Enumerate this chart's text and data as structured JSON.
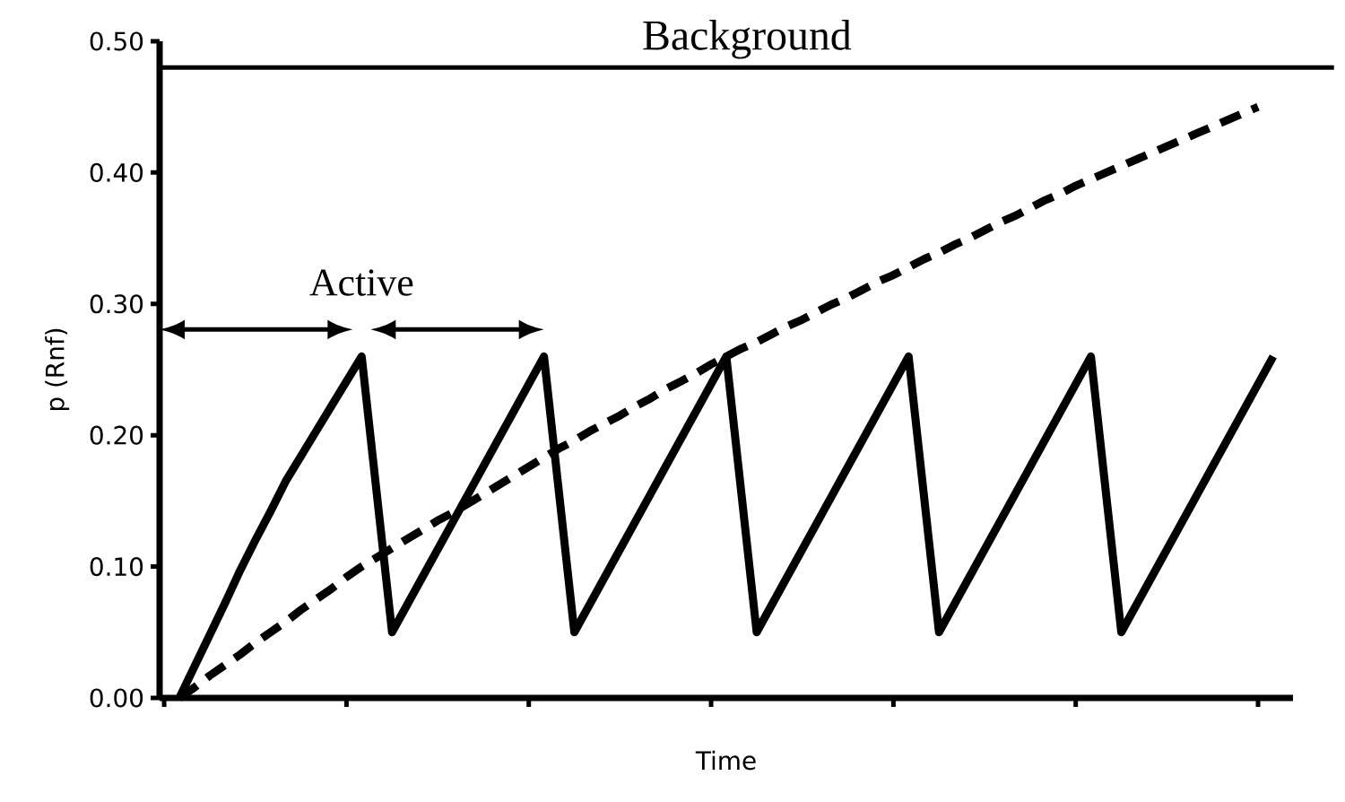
{
  "chart_data": {
    "type": "line",
    "xlabel": "Time",
    "ylabel": "p (Rnf)",
    "categories": [
      null,
      null,
      null,
      null,
      null,
      null,
      null,
      null,
      null,
      null,
      null,
      null,
      null,
      null,
      null,
      null,
      null,
      null,
      null,
      null,
      null,
      null,
      null,
      null,
      null,
      null,
      null,
      null,
      null,
      null,
      null,
      null,
      null,
      null,
      null,
      null,
      null,
      null,
      null,
      null,
      null,
      null,
      null,
      null,
      null,
      null,
      null,
      null,
      null,
      null,
      null,
      null,
      null,
      null,
      null,
      null,
      null,
      null,
      null,
      null,
      null,
      null,
      null,
      null,
      null,
      null,
      null,
      null,
      null,
      null,
      null,
      null,
      null
    ],
    "series": [
      {
        "color": "#000000",
        "line_style": "solid",
        "values": [
          0,
          0.024,
          0.048,
          0.072,
          0.097,
          0.12,
          0.142,
          0.165,
          0.184,
          0.203,
          0.222,
          0.241,
          0.26,
          0.155,
          0.05,
          0.071,
          0.092,
          0.113,
          0.134,
          0.155,
          0.176,
          0.197,
          0.218,
          0.239,
          0.26,
          0.155,
          0.05,
          0.071,
          0.092,
          0.113,
          0.134,
          0.155,
          0.176,
          0.197,
          0.218,
          0.239,
          0.26,
          0.155,
          0.05,
          0.071,
          0.092,
          0.113,
          0.134,
          0.155,
          0.176,
          0.197,
          0.218,
          0.239,
          0.26,
          0.155,
          0.05,
          0.071,
          0.092,
          0.113,
          0.134,
          0.155,
          0.176,
          0.197,
          0.218,
          0.239,
          0.26,
          0.155,
          0.05,
          0.071,
          0.092,
          0.113,
          0.134,
          0.155,
          0.176,
          0.197,
          0.218,
          0.239,
          0.26
        ]
      },
      {
        "color": "#000000",
        "line_style": "dashed",
        "values": [
          0,
          0.008,
          0.017,
          0.025,
          0.033,
          0.042,
          0.05,
          0.058,
          0.067,
          0.075,
          0.083,
          0.092,
          0.1,
          0.107,
          0.114,
          0.121,
          0.128,
          0.135,
          0.141,
          0.148,
          0.155,
          0.162,
          0.169,
          0.176,
          0.183,
          0.19,
          0.196,
          0.203,
          0.209,
          0.215,
          0.222,
          0.228,
          0.235,
          0.241,
          0.247,
          0.254,
          0.26,
          0.266,
          0.271,
          0.277,
          0.283,
          0.288,
          0.294,
          0.3,
          0.305,
          0.311,
          0.317,
          0.322,
          0.328,
          0.334,
          0.339,
          0.345,
          0.35,
          0.356,
          0.362,
          0.367,
          0.373,
          0.379,
          0.384,
          0.39,
          0.395,
          0.4,
          0.405,
          0.41,
          0.415,
          0.42,
          0.425,
          0.43,
          0.435,
          0.44,
          0.445,
          0.45,
          null
        ]
      }
    ],
    "ylim": [
      0,
      0.5
    ],
    "yticks": [
      {
        "value": 0,
        "label": "0.00"
      },
      {
        "value": 0.1,
        "label": "0.10"
      },
      {
        "value": 0.2,
        "label": "0.20"
      },
      {
        "value": 0.3,
        "label": "0.30"
      },
      {
        "value": 0.4,
        "label": "0.40"
      },
      {
        "value": 0.5,
        "label": "0.50"
      }
    ],
    "tick_labels": "y",
    "marker": "none",
    "ref_lines": [
      {
        "axis": "y",
        "value": 0.48,
        "label": "Background",
        "color": "#000000"
      }
    ],
    "annotations": [
      "Active"
    ]
  }
}
